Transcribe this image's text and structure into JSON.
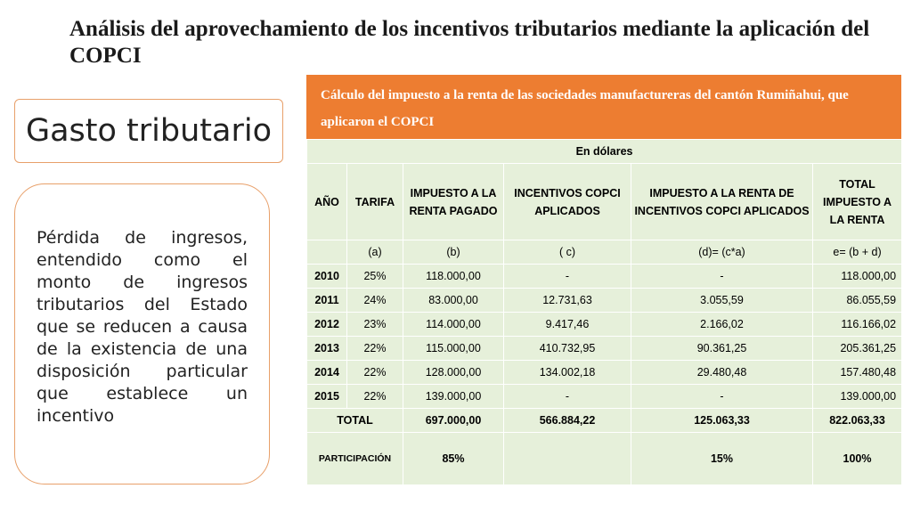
{
  "slide": {
    "title": "Análisis del aprovechamiento de los incentivos tributarios mediante la aplicación del COPCI"
  },
  "left": {
    "box_title": "Gasto tributario",
    "definition": "Pérdida de ingresos, entendido como el monto de ingresos tributarios del Estado que se reducen a causa de la existencia de una disposición particular que establece un incentivo"
  },
  "table": {
    "caption": "Cálculo del impuesto a la renta de las sociedades manufactureras del cantón Rumiñahui, que aplicaron el COPCI",
    "currency_note": "En dólares",
    "headers": [
      "AÑO",
      "TARIFA",
      "IMPUESTO A LA RENTA PAGADO",
      "INCENTIVOS COPCI APLICADOS",
      "IMPUESTO A LA RENTA DE INCENTIVOS COPCI APLICADOS",
      "TOTAL IMPUESTO A LA RENTA"
    ],
    "formula_row": [
      "",
      "(a)",
      "(b)",
      "( c)",
      "(d)= (c*a)",
      "e= (b + d)"
    ],
    "rows": [
      [
        "2010",
        "25%",
        "118.000,00",
        "-",
        "-",
        "118.000,00"
      ],
      [
        "2011",
        "24%",
        "83.000,00",
        "12.731,63",
        "3.055,59",
        "86.055,59"
      ],
      [
        "2012",
        "23%",
        "114.000,00",
        "9.417,46",
        "2.166,02",
        "116.166,02"
      ],
      [
        "2013",
        "22%",
        "115.000,00",
        "410.732,95",
        "90.361,25",
        "205.361,25"
      ],
      [
        "2014",
        "22%",
        "128.000,00",
        "134.002,18",
        "29.480,48",
        "157.480,48"
      ],
      [
        "2015",
        "22%",
        "139.000,00",
        "-",
        "-",
        "139.000,00"
      ]
    ],
    "total": {
      "label": "TOTAL",
      "paid": "697.000,00",
      "incentives": "566.884,22",
      "tax_incentives": "125.063,33",
      "total": "822.063,33"
    },
    "participation": {
      "label": "PARTICIPACIÓN",
      "paid": "85%",
      "incentives": "",
      "tax_incentives": "15%",
      "total": "100%"
    }
  }
}
